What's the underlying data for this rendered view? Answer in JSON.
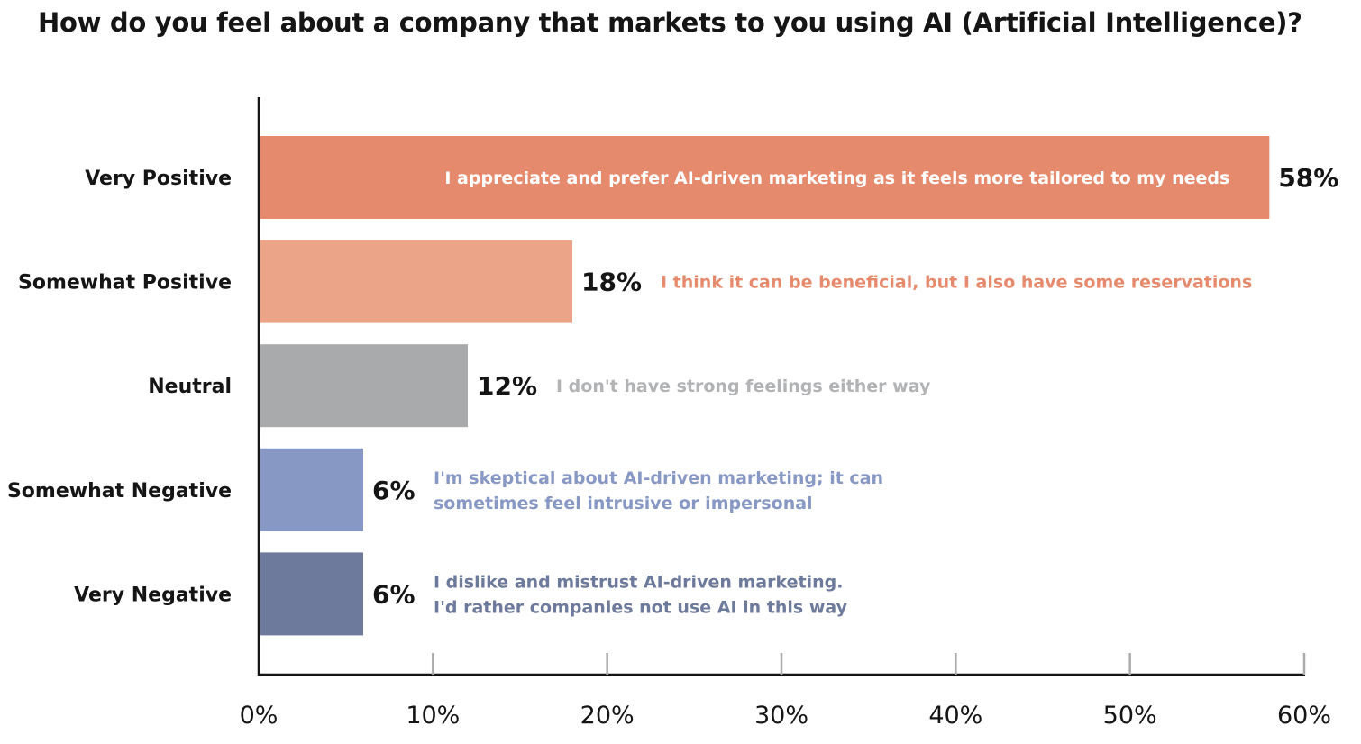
{
  "chart_data": {
    "type": "bar",
    "orientation": "horizontal",
    "title": "How do you feel about a company that markets to you using AI (Artificial Intelligence)?",
    "categories": [
      "Very Positive",
      "Somewhat Positive",
      "Neutral",
      "Somewhat Negative",
      "Very Negative"
    ],
    "values": [
      58,
      18,
      12,
      6,
      6
    ],
    "value_labels": [
      "58%",
      "18%",
      "12%",
      "6%",
      "6%"
    ],
    "annotations": [
      [
        "I appreciate and prefer AI-driven marketing as it feels more tailored to my needs"
      ],
      [
        "I think it can be beneficial, but I also have some reservations"
      ],
      [
        "I don't have strong feelings either way"
      ],
      [
        "I'm skeptical about AI-driven marketing; it can",
        "sometimes feel intrusive or impersonal"
      ],
      [
        "I dislike and mistrust AI-driven marketing.",
        "I'd rather companies not use AI in this way"
      ]
    ],
    "colors": [
      "#e68a6d",
      "#eba487",
      "#a9aaac",
      "#8898c4",
      "#6e7a9c"
    ],
    "annotation_colors": [
      "#ffffff",
      "#e68a6d",
      "#b2b3b5",
      "#8898c4",
      "#6e7a9c"
    ],
    "xlim": [
      0,
      60
    ],
    "xticks": [
      0,
      10,
      20,
      30,
      40,
      50,
      60
    ],
    "xtick_labels": [
      "0%",
      "10%",
      "20%",
      "30%",
      "40%",
      "50%",
      "60%"
    ],
    "xlabel": "",
    "ylabel": "",
    "grid": false,
    "legend": "none"
  }
}
